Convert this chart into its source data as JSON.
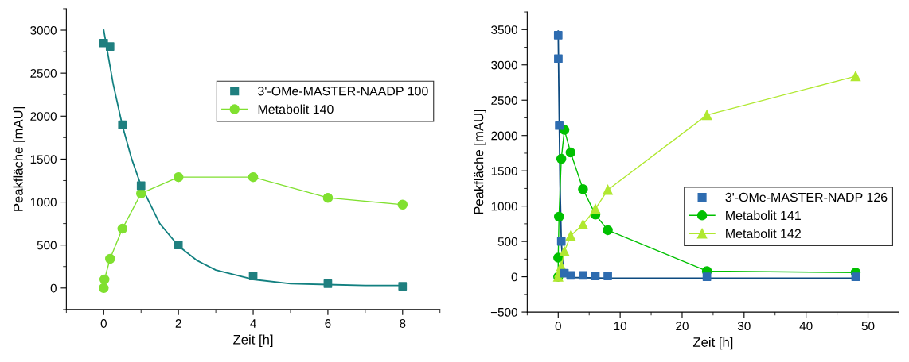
{
  "chart_data": [
    {
      "type": "line",
      "xlabel": "Zeit [h]",
      "ylabel": "Peakfläche [mAU]",
      "xlim": [
        -1,
        9
      ],
      "ylim": [
        -250,
        3250
      ],
      "xticks": [
        0,
        2,
        4,
        6,
        8
      ],
      "yticks": [
        0,
        500,
        1000,
        1500,
        2000,
        2500,
        3000
      ],
      "grid": false,
      "legend": "top right",
      "series": [
        {
          "name": "3'-OMe-MASTER-NAADP 100",
          "type": "scatter",
          "marker": "square",
          "color": "#1f7f7f",
          "x": [
            0,
            0.17,
            0.5,
            1,
            2,
            4,
            6,
            8
          ],
          "values": [
            2850,
            2810,
            1900,
            1190,
            500,
            140,
            50,
            20
          ]
        },
        {
          "marker": "none",
          "color": "#128080",
          "x": [
            0,
            0.25,
            0.5,
            0.75,
            1,
            1.5,
            2,
            2.5,
            3,
            4,
            5,
            6,
            7,
            8
          ],
          "values": [
            3000,
            2380,
            1890,
            1500,
            1190,
            750,
            490,
            320,
            210,
            100,
            50,
            40,
            30,
            30
          ]
        },
        {
          "name": "Metabolit 140",
          "marker": "circle",
          "color": "#80e030",
          "x": [
            0,
            0.02,
            0.17,
            0.5,
            1,
            2,
            4,
            6,
            8
          ],
          "values": [
            0,
            100,
            340,
            690,
            1100,
            1290,
            1290,
            1050,
            970
          ]
        }
      ]
    },
    {
      "type": "line",
      "xlabel": "Zeit [h]",
      "ylabel": "Peakfläche [mAU]",
      "xlim": [
        -5,
        55
      ],
      "ylim": [
        -500,
        3750
      ],
      "xticks": [
        0,
        10,
        20,
        30,
        40,
        50
      ],
      "yticks": [
        {
          "value": -500,
          "label": "−500"
        },
        0,
        500,
        1000,
        1500,
        2000,
        2500,
        3000,
        3500
      ],
      "grid": false,
      "legend": "right",
      "series": [
        {
          "name": "3'-OMe-MASTER-NADP 126",
          "type": "scatter",
          "marker": "square",
          "color": "#2e6cb0",
          "x": [
            0,
            0.02,
            0.17,
            0.5,
            1,
            2,
            4,
            6,
            8,
            24,
            48
          ],
          "values": [
            3420,
            3090,
            2140,
            500,
            50,
            20,
            20,
            10,
            10,
            0,
            0
          ]
        },
        {
          "marker": "none",
          "color": "#0d4a80",
          "x": [
            0,
            0.1,
            0.17,
            0.3,
            0.5,
            0.75,
            1,
            1.5,
            2,
            8,
            48
          ],
          "values": [
            3480,
            2700,
            2200,
            1300,
            500,
            180,
            60,
            0,
            -10,
            -20,
            -20
          ]
        },
        {
          "name": "Metabolit 141",
          "marker": "circle",
          "color": "#00c000",
          "x": [
            0,
            0,
            0.13,
            0.5,
            1,
            2,
            4,
            6,
            8,
            24,
            48
          ],
          "values": [
            0,
            270,
            850,
            1670,
            2080,
            1760,
            1240,
            880,
            660,
            80,
            60
          ]
        },
        {
          "name": "Metabolit 142",
          "marker": "triangle",
          "color": "#b0e830",
          "x": [
            0,
            0.17,
            0.5,
            1,
            2,
            4,
            6,
            8,
            24,
            48
          ],
          "values": [
            0,
            60,
            150,
            360,
            580,
            740,
            960,
            1230,
            2290,
            2840
          ]
        }
      ]
    }
  ]
}
